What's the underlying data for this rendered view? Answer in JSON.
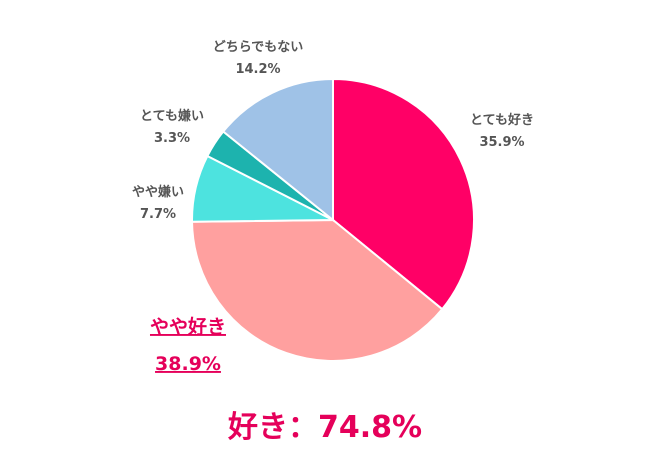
{
  "chart_data": {
    "type": "pie",
    "slices": [
      {
        "label": "とても好き",
        "value": 35.9,
        "value_text": "35.9%",
        "color": "#ff0066"
      },
      {
        "label": "やや好き",
        "value": 38.9,
        "value_text": "38.9%",
        "color": "#ffa09f",
        "highlight": true
      },
      {
        "label": "やや嫌い",
        "value": 7.7,
        "value_text": "7.7%",
        "color": "#4de3df"
      },
      {
        "label": "とても嫌い",
        "value": 3.3,
        "value_text": "3.3%",
        "color": "#1db3ae"
      },
      {
        "label": "どちらでもない",
        "value": 14.2,
        "value_text": "14.2%",
        "color": "#9fc2e7"
      }
    ],
    "start_angle_deg": 0,
    "direction": "clockwise",
    "summary": "好き：74.8%",
    "highlight_color": "#e5005a",
    "label_color": "#555555"
  }
}
